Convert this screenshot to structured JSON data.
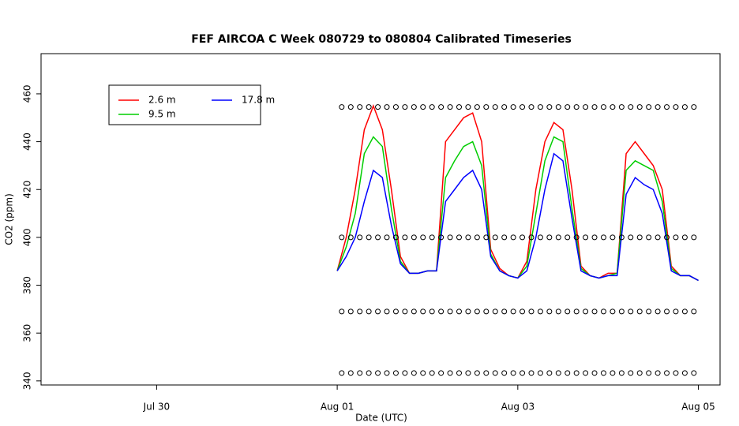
{
  "chart_data": {
    "type": "line",
    "title": "FEF AIRCOA C  Week 080729 to 080804  Calibrated Timeseries",
    "x_label": "Date (UTC)",
    "y_label": "CO2 (ppm)",
    "xlim": [
      -3.28,
      4.24
    ],
    "xticks": [
      {
        "value": -2,
        "label": "Jul 30"
      },
      {
        "value": 0,
        "label": "Aug 01"
      },
      {
        "value": 2,
        "label": "Aug 03"
      },
      {
        "value": 4,
        "label": "Aug 05"
      }
    ],
    "ylim": [
      338.3,
      476.8
    ],
    "yticks": [
      340,
      360,
      380,
      400,
      420,
      440,
      460
    ],
    "legend": "top-left",
    "x": [
      0,
      0.1,
      0.2,
      0.3,
      0.4,
      0.5,
      0.6,
      0.7,
      0.8,
      0.9,
      1.0,
      1.1,
      1.2,
      1.3,
      1.4,
      1.5,
      1.6,
      1.7,
      1.8,
      1.9,
      2.0,
      2.1,
      2.2,
      2.3,
      2.4,
      2.5,
      2.6,
      2.7,
      2.8,
      2.9,
      3.0,
      3.1,
      3.2,
      3.3,
      3.4,
      3.5,
      3.6,
      3.7,
      3.8,
      3.9,
      4.0
    ],
    "series": [
      {
        "name": "2.6 m",
        "color": "#ff0000",
        "values": [
          386,
          400,
          420,
          445,
          455,
          445,
          420,
          392,
          385,
          385,
          386,
          386,
          440,
          445,
          450,
          452,
          440,
          395,
          387,
          384,
          383,
          390,
          420,
          440,
          448,
          445,
          420,
          388,
          384,
          383,
          385,
          385,
          435,
          440,
          435,
          430,
          420,
          388,
          384,
          384,
          382
        ]
      },
      {
        "name": "9.5 m",
        "color": "#00cd00",
        "values": [
          386,
          396,
          410,
          435,
          442,
          438,
          412,
          390,
          385,
          385,
          386,
          386,
          425,
          432,
          438,
          440,
          430,
          393,
          386,
          384,
          383,
          388,
          410,
          432,
          442,
          440,
          412,
          387,
          384,
          383,
          384,
          385,
          428,
          432,
          430,
          428,
          415,
          387,
          384,
          384,
          382
        ]
      },
      {
        "name": "17.8 m",
        "color": "#0000ff",
        "values": [
          386,
          392,
          400,
          415,
          428,
          425,
          405,
          389,
          385,
          385,
          386,
          386,
          415,
          420,
          425,
          428,
          420,
          392,
          386,
          384,
          383,
          386,
          400,
          420,
          435,
          432,
          408,
          386,
          384,
          383,
          384,
          384,
          418,
          425,
          422,
          420,
          410,
          386,
          384,
          384,
          382
        ]
      }
    ],
    "calibration_levels": [
      454.5,
      400,
      369,
      343.3
    ],
    "calibration_x": [
      0.05,
      0.15,
      0.25,
      0.35,
      0.45,
      0.55,
      0.65,
      0.75,
      0.85,
      0.95,
      1.05,
      1.15,
      1.25,
      1.35,
      1.45,
      1.55,
      1.65,
      1.75,
      1.85,
      1.95,
      2.05,
      2.15,
      2.25,
      2.35,
      2.45,
      2.55,
      2.65,
      2.75,
      2.85,
      2.95,
      3.05,
      3.15,
      3.25,
      3.35,
      3.45,
      3.55,
      3.65,
      3.75,
      3.85,
      3.95
    ]
  }
}
